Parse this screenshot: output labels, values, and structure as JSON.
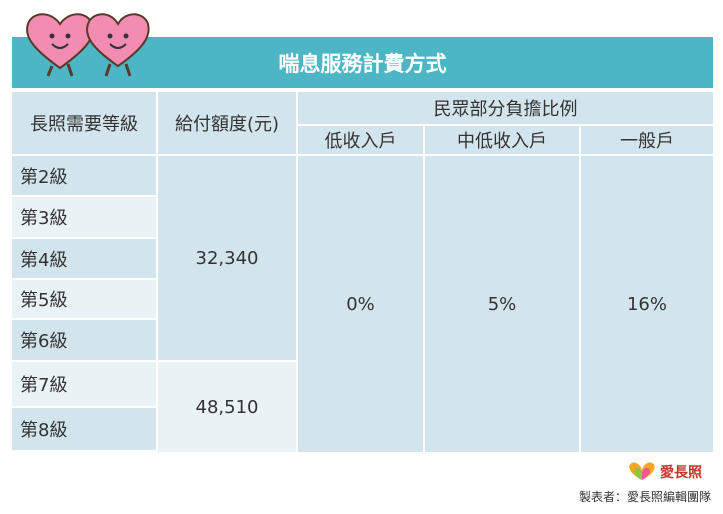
{
  "header": {
    "title": "喘息服務計費方式"
  },
  "table": {
    "headers": [
      "長照需要等級",
      "給付額度(元)",
      "民眾部分負擔比例"
    ],
    "subheaders": [
      "低收入戶",
      "中低收入戶",
      "一般戶"
    ],
    "levels": [
      "第2級",
      "第3級",
      "第4級",
      "第5級",
      "第6級",
      "第7級",
      "第8級"
    ],
    "amounts": [
      "32,340",
      "48,510"
    ],
    "shares": [
      "0%",
      "5%",
      "16%"
    ]
  },
  "footer": {
    "logo": "愛長照",
    "credit": "製表者：愛長照編輯團隊"
  }
}
